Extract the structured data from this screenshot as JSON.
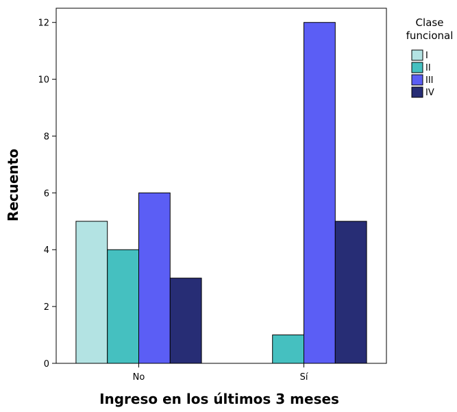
{
  "chart_data": {
    "type": "bar",
    "xlabel": "Ingreso en los últimos 3 meses",
    "ylabel": "Recuento",
    "ylim": [
      0,
      12.5
    ],
    "yticks": [
      "0",
      "2",
      "4",
      "6",
      "8",
      "10",
      "12"
    ],
    "categories": [
      "No",
      "Sí"
    ],
    "legend_title": [
      "Clase",
      "funcional"
    ],
    "legend_position": "right",
    "grid": false,
    "series": [
      {
        "name": "I",
        "color": "#b3e3e3",
        "values": [
          5,
          0
        ]
      },
      {
        "name": "II",
        "color": "#45c0c0",
        "values": [
          4,
          1
        ]
      },
      {
        "name": "III",
        "color": "#5b5ef5",
        "values": [
          6,
          12
        ]
      },
      {
        "name": "IV",
        "color": "#272d75",
        "values": [
          3,
          5
        ]
      }
    ]
  }
}
